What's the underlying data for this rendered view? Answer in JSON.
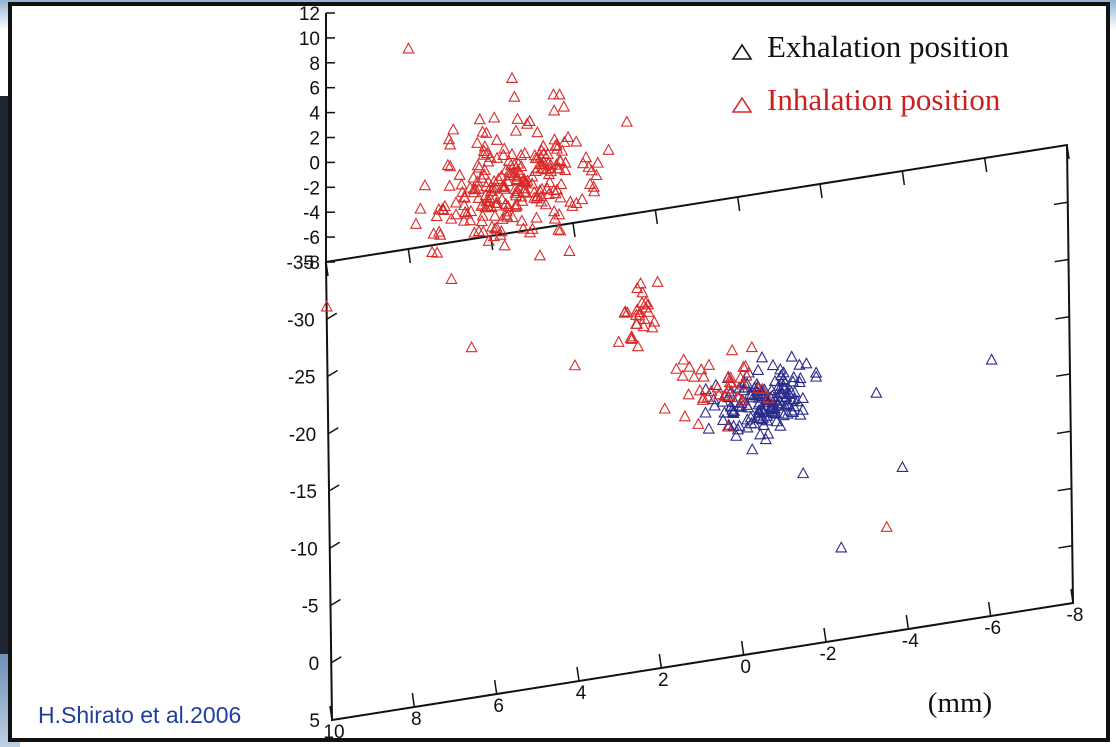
{
  "chart_data": {
    "type": "scatter",
    "projection": "3d",
    "legend_position": "top-right",
    "grid": false,
    "xlim": [
      10,
      -8
    ],
    "ylim": [
      -35,
      5
    ],
    "zlim": [
      -8,
      12
    ],
    "x_ticks": [
      "10",
      "8",
      "6",
      "4",
      "2",
      "0",
      "-2",
      "-4",
      "-6",
      "-8"
    ],
    "y_ticks": [
      "-35",
      "-30",
      "-25",
      "-20",
      "-15",
      "-10",
      "-5",
      "0",
      "5"
    ],
    "z_ticks": [
      "12",
      "10",
      "8",
      "6",
      "4",
      "2",
      "0",
      "-2",
      "-4",
      "-6",
      "-8"
    ],
    "unit_label": "(mm)",
    "series": [
      {
        "name": "Exhalation position",
        "marker": "triangle",
        "color": "#2a2a8c",
        "clusters": [
          {
            "x": [
              1,
              -2
            ],
            "y": [
              -16,
              -9
            ],
            "z": [
              -6,
              -2
            ],
            "count": 150
          }
        ],
        "outliers": [
          {
            "x": -1.5,
            "y": -10,
            "z": -8
          },
          {
            "x": -2.4,
            "y": -3,
            "z": -8
          },
          {
            "x": -6.1,
            "y": -16,
            "z": -6.8
          },
          {
            "x": -3.3,
            "y": -16,
            "z": -8
          },
          {
            "x": -3.9,
            "y": -7,
            "z": -6
          }
        ]
      },
      {
        "name": "Inhalation position",
        "marker": "triangle",
        "color": "#d92a2a",
        "clusters": [
          {
            "x": [
              8,
              3
            ],
            "y": [
              -31,
              -25
            ],
            "z": [
              -4,
              8
            ],
            "count": 240
          },
          {
            "x": [
              3,
              2
            ],
            "y": [
              -23,
              -17
            ],
            "z": [
              -5,
              0
            ],
            "count": 25
          },
          {
            "x": [
              2,
              -1
            ],
            "y": [
              -16,
              -10
            ],
            "z": [
              -6,
              0
            ],
            "count": 40
          }
        ],
        "outliers": [
          {
            "x": 10,
            "y": -30,
            "z": -7
          },
          {
            "x": 6.5,
            "y": -25,
            "z": -7.5
          },
          {
            "x": 2.5,
            "y": -25,
            "z": -7
          },
          {
            "x": 4,
            "y": -22,
            "z": -7.5
          },
          {
            "x": -3.5,
            "y": -2,
            "z": -6
          },
          {
            "x": 8,
            "y": -34,
            "z": 9
          },
          {
            "x": 5.5,
            "y": -30,
            "z": 9
          },
          {
            "x": 4.5,
            "y": -28,
            "z": 9
          },
          {
            "x": 7,
            "y": -22,
            "z": 1
          },
          {
            "x": 2,
            "y": -20,
            "z": 0
          }
        ]
      }
    ]
  },
  "credit": "H.Shirato et al.2006"
}
